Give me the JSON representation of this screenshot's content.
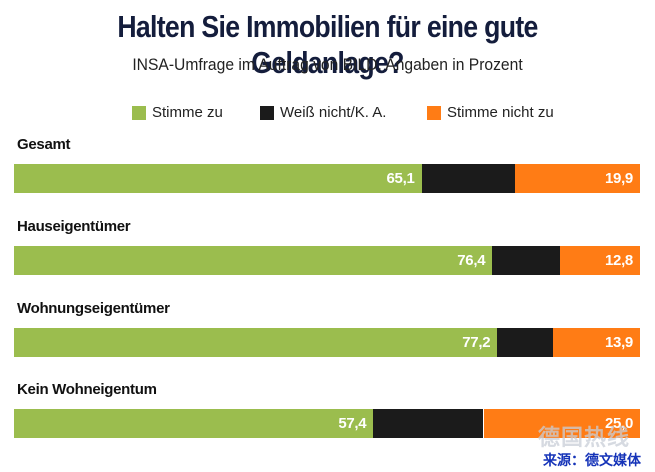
{
  "title": "Halten Sie Immobilien für eine gute Geldanlage?",
  "subtitle": "INSA-Umfrage im Auftrag von BILD. Angaben in Prozent",
  "legend": [
    {
      "label": "Stimme zu",
      "color": "#9bbd4e"
    },
    {
      "label": "Weiß nicht/K. A.",
      "color": "#1b1b1b"
    },
    {
      "label": "Stimme nicht zu",
      "color": "#ff7c15"
    }
  ],
  "chart_data": {
    "type": "bar",
    "orientation": "horizontal-stacked",
    "title": "Halten Sie Immobilien für eine gute Geldanlage?",
    "subtitle": "INSA-Umfrage im Auftrag von BILD. Angaben in Prozent",
    "categories": [
      "Gesamt",
      "Hauseigentümer",
      "Wohnungseigentümer",
      "Kein Wohneigentum"
    ],
    "series": [
      {
        "name": "Stimme zu",
        "values": [
          65.1,
          76.4,
          77.2,
          57.4
        ],
        "labels": [
          "65,1",
          "76,4",
          "77,2",
          "57,4"
        ]
      },
      {
        "name": "Weiß nicht/K. A.",
        "values": [
          15.0,
          10.8,
          8.9,
          17.6
        ],
        "labels": [
          "",
          "",
          "",
          ""
        ]
      },
      {
        "name": "Stimme nicht zu",
        "values": [
          19.9,
          12.8,
          13.9,
          25.0
        ],
        "labels": [
          "19,9",
          "12,8",
          "13,9",
          "25,0"
        ]
      }
    ],
    "xlim": [
      0,
      100
    ],
    "legend_position": "top"
  },
  "watermark": "德国热线",
  "source": "来源：德文媒体"
}
